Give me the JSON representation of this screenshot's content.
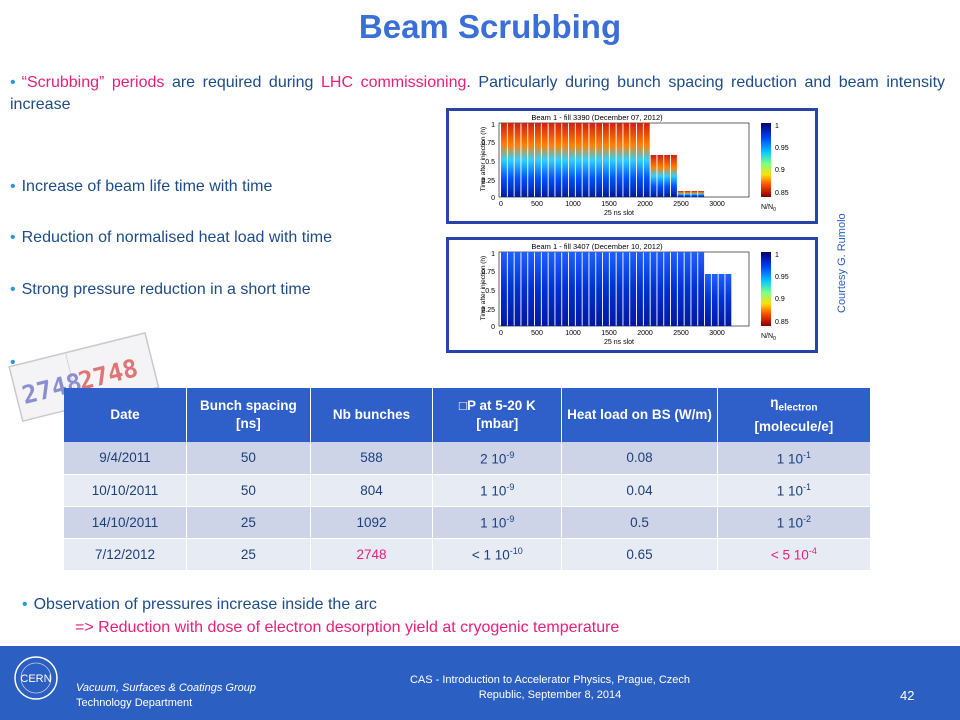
{
  "title": "Beam Scrubbing",
  "bullets": {
    "b1_pre": "“Scrubbing” periods",
    "b1_mid": " are required during ",
    "b1_hl": "LHC commissioning",
    "b1_post": ". Particularly during bunch spacing reduction and beam intensity increase",
    "b2": "Increase of beam life time with time",
    "b3": "Reduction of normalised heat load with time",
    "b4": "Strong pressure reduction in a short time",
    "b5_marker": "•",
    "dot": "•"
  },
  "stamp": {
    "text_left": "2748",
    "text_right": "2748"
  },
  "plots": [
    {
      "title": "Beam 1 - fill 3390 (December 07, 2012)",
      "ylabel": "Time after injection (h)",
      "xlabel": "25 ns slot",
      "xticks": [
        "0",
        "500",
        "1000",
        "1500",
        "2000",
        "2500",
        "3000"
      ],
      "yticks": [
        "0",
        "0.25",
        "0.5",
        "0.75",
        "1"
      ],
      "cbar_ticks": [
        "1",
        "0.95",
        "0.9",
        "0.85"
      ],
      "cbar_label": "N/N",
      "cbar_label_sub": "0"
    },
    {
      "title": "Beam 1 - fill 3407 (December 10, 2012)",
      "ylabel": "Time after injection (h)",
      "xlabel": "25 ns slot",
      "xticks": [
        "0",
        "500",
        "1000",
        "1500",
        "2000",
        "2500",
        "3000"
      ],
      "yticks": [
        "0",
        "0.25",
        "0.5",
        "0.75",
        "1"
      ],
      "cbar_ticks": [
        "1",
        "0.95",
        "0.9",
        "0.85"
      ],
      "cbar_label": "N/N",
      "cbar_label_sub": "0"
    }
  ],
  "courtesy": "Courtesy G. Rumolo",
  "table": {
    "headers": {
      "date": "Date",
      "spacing": "Bunch spacing [ns]",
      "nb": "Nb bunches",
      "dp": "□P at 5-20 K [mbar]",
      "heat": "Heat load on BS (W/m)",
      "eta_sym": "η",
      "eta_sub": "electron",
      "eta_unit": "[molecule/e]"
    },
    "rows": [
      {
        "date": "9/4/2011",
        "spacing": "50",
        "nb": "588",
        "dp": "2 10",
        "dp_exp": "-9",
        "heat": "0.08",
        "eta": "1 10",
        "eta_exp": "-1"
      },
      {
        "date": "10/10/2011",
        "spacing": "50",
        "nb": "804",
        "dp": "1 10",
        "dp_exp": "-9",
        "heat": "0.04",
        "eta": "1 10",
        "eta_exp": "-1"
      },
      {
        "date": "14/10/2011",
        "spacing": "25",
        "nb": "1092",
        "dp": "1 10",
        "dp_exp": "-9",
        "heat": "0.5",
        "eta": "1 10",
        "eta_exp": "-2"
      },
      {
        "date": "7/12/2012",
        "spacing": "25",
        "nb": "2748",
        "dp": "< 1 10",
        "dp_exp": "-10",
        "heat": "0.65",
        "eta": "< 5 10",
        "eta_exp": "-4"
      }
    ]
  },
  "observation": {
    "line1": "Observation of pressures increase inside the arc",
    "line2": "=> Reduction with dose of electron desorption yield at cryogenic temperature"
  },
  "footer": {
    "logo_text": "CERN",
    "group": "Vacuum, Surfaces & Coatings Group",
    "dept": "Technology Department",
    "conf_line1": "CAS - Introduction to Accelerator Physics, Prague, Czech",
    "conf_line2": "Republic, September 8, 2014",
    "page": "42"
  },
  "colors": {
    "title": "#3a6fd8",
    "highlight": "#e8207a",
    "footer_bg": "#2c5fc2",
    "table_header": "#2f5fc8",
    "plot_frame": "#2844a8"
  }
}
